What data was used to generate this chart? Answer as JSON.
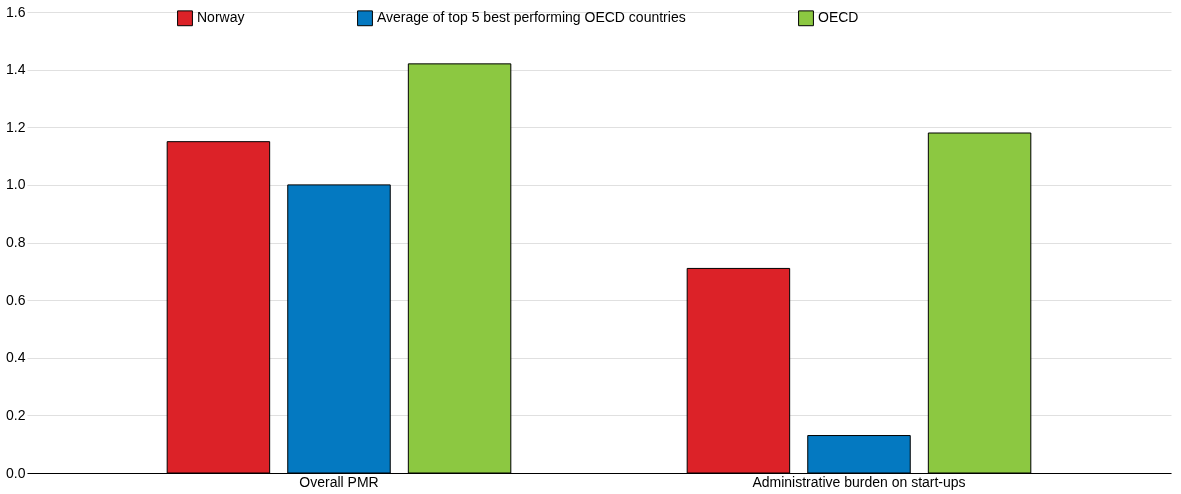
{
  "chart_data": {
    "type": "bar",
    "categories": [
      "Overall PMR",
      "Administrative burden on start-ups"
    ],
    "series": [
      {
        "name": "Norway",
        "color": "#dc2228",
        "values": [
          1.15,
          0.71
        ]
      },
      {
        "name": "Average of top 5 best performing OECD countries",
        "color": "#0479c1",
        "values": [
          1.0,
          0.13
        ]
      },
      {
        "name": "OECD",
        "color": "#8cc841",
        "values": [
          1.42,
          1.18
        ]
      }
    ],
    "ylim": [
      0,
      1.6
    ],
    "yticks": [
      {
        "value": 0,
        "label": "0.0"
      },
      0.2,
      0.4,
      0.6,
      0.8,
      {
        "value": 1,
        "label": "1.0"
      },
      1.2,
      1.4,
      1.6
    ],
    "grid": "y",
    "legend": "top"
  }
}
